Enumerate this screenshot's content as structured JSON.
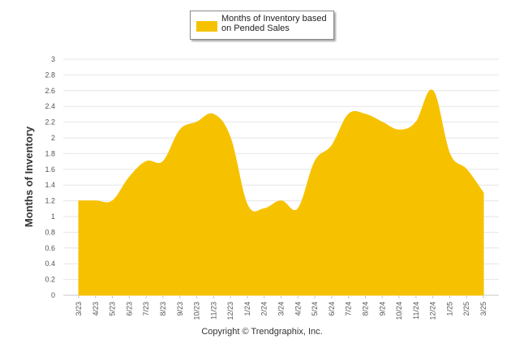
{
  "chart_data": {
    "type": "area",
    "categories": [
      "3/23",
      "4/23",
      "5/23",
      "6/23",
      "7/23",
      "8/23",
      "9/23",
      "10/23",
      "11/23",
      "12/23",
      "1/24",
      "2/24",
      "3/24",
      "4/24",
      "5/24",
      "6/24",
      "7/24",
      "8/24",
      "9/24",
      "10/24",
      "11/24",
      "12/24",
      "1/25",
      "2/25",
      "3/25"
    ],
    "series": [
      {
        "name": "Months of Inventory based on Pended Sales",
        "values": [
          1.2,
          1.2,
          1.2,
          1.5,
          1.7,
          1.7,
          2.1,
          2.2,
          2.3,
          2.0,
          1.15,
          1.1,
          1.2,
          1.1,
          1.7,
          1.9,
          2.3,
          2.3,
          2.2,
          2.1,
          2.2,
          2.6,
          1.8,
          1.6,
          1.3
        ]
      }
    ],
    "ylabel": "Months of Inventory",
    "xlabel": "",
    "ylim": [
      0,
      3
    ],
    "yticks": [
      "0",
      "0.2",
      "0.4",
      "0.6",
      "0.8",
      "1",
      "1.2",
      "1.4",
      "1.6",
      "1.8",
      "2",
      "2.2",
      "2.4",
      "2.6",
      "2.8",
      "3"
    ],
    "grid": true,
    "legend_position": "top-center",
    "color": "#f6c200"
  },
  "footer": {
    "copyright": "Copyright © Trendgraphix, Inc."
  }
}
